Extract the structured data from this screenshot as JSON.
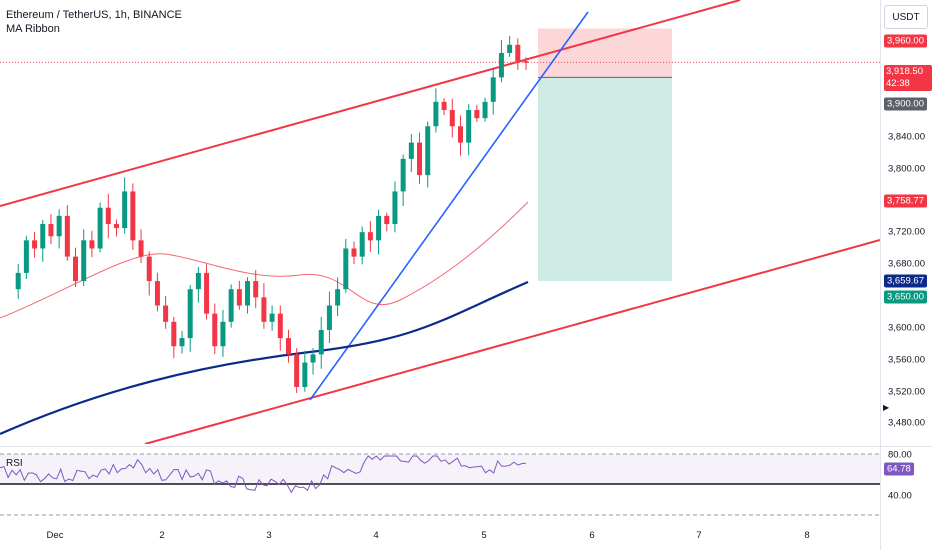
{
  "header": {
    "symbol_title": "Ethereum / TetherUS, 1h, BINANCE",
    "indicator": "MA Ribbon"
  },
  "currency_button": "USDT",
  "price_axis": {
    "ticks": [
      "3,840.00",
      "3,800.00",
      "3,720.00",
      "3,680.00",
      "3,600.00",
      "3,560.00",
      "3,520.00",
      "3,480.00"
    ],
    "badges": {
      "target_top": "3,960.00",
      "current_price": "3,918.50",
      "countdown": "42:38",
      "entry": "3,900.00",
      "ma_fast": "3,758.77",
      "ma_slow": "3,659.67",
      "target_bottom": "3,650.00"
    }
  },
  "time_axis": {
    "labels": [
      "Dec",
      "2",
      "3",
      "4",
      "5",
      "6",
      "7",
      "8"
    ]
  },
  "rsi": {
    "label": "RSI",
    "value": "64.78",
    "levels": [
      "80.00",
      "40.00"
    ]
  },
  "colors": {
    "bull": "#089981",
    "bear": "#f23645",
    "channel": "#f23645",
    "trendline": "#2962ff",
    "ma_slow": "#0c2a8a",
    "ma_fast": "#f23645",
    "rsi_line": "#7e57c2"
  },
  "chart_data": {
    "type": "candlestick",
    "interval": "1h",
    "ylim": [
      3450,
      3995
    ],
    "x_labels": [
      "Dec",
      "2",
      "3",
      "4",
      "5",
      "6",
      "7",
      "8"
    ],
    "price_path": [
      3640,
      3660,
      3700,
      3690,
      3720,
      3705,
      3730,
      3680,
      3650,
      3700,
      3690,
      3740,
      3720,
      3715,
      3760,
      3700,
      3680,
      3650,
      3620,
      3600,
      3570,
      3580,
      3640,
      3660,
      3610,
      3570,
      3600,
      3640,
      3620,
      3650,
      3630,
      3600,
      3610,
      3580,
      3560,
      3520,
      3550,
      3560,
      3590,
      3620,
      3640,
      3690,
      3680,
      3710,
      3700,
      3730,
      3720,
      3760,
      3800,
      3820,
      3780,
      3840,
      3870,
      3860,
      3840,
      3820,
      3860,
      3850,
      3870,
      3900,
      3930,
      3940,
      3920,
      3918
    ]
  }
}
